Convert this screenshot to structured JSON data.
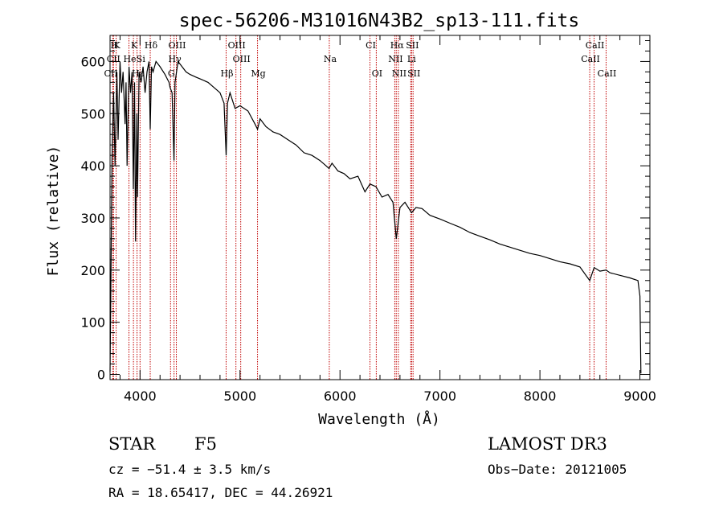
{
  "chart_data": {
    "type": "line",
    "title": "spec-56206-M31016N43B2_sp13-111.fits",
    "xlabel": "Wavelength (Å)",
    "ylabel": "Flux (relative)",
    "xlim": [
      3700,
      9100
    ],
    "ylim": [
      -10,
      650
    ],
    "xticks": [
      4000,
      5000,
      6000,
      7000,
      8000,
      9000
    ],
    "yticks": [
      0,
      100,
      200,
      300,
      400,
      500,
      600
    ],
    "line_color": "#000000",
    "marker_color": "#c00000",
    "spectrum": {
      "x": [
        3700,
        3720,
        3735,
        3750,
        3768,
        3780,
        3800,
        3815,
        3830,
        3850,
        3860,
        3870,
        3890,
        3905,
        3920,
        3933,
        3945,
        3955,
        3968,
        3975,
        3990,
        4010,
        4030,
        4050,
        4070,
        4090,
        4102,
        4115,
        4130,
        4160,
        4200,
        4250,
        4290,
        4300,
        4320,
        4340,
        4350,
        4380,
        4420,
        4460,
        4500,
        4560,
        4620,
        4680,
        4740,
        4800,
        4840,
        4861,
        4875,
        4900,
        4950,
        5000,
        5080,
        5150,
        5175,
        5200,
        5260,
        5330,
        5400,
        5480,
        5560,
        5640,
        5720,
        5800,
        5860,
        5890,
        5920,
        5980,
        6040,
        6100,
        6180,
        6250,
        6300,
        6360,
        6420,
        6480,
        6530,
        6563,
        6600,
        6650,
        6716,
        6760,
        6820,
        6900,
        7000,
        7100,
        7200,
        7300,
        7400,
        7500,
        7600,
        7700,
        7800,
        7900,
        8000,
        8100,
        8200,
        8300,
        8400,
        8498,
        8542,
        8600,
        8662,
        8700,
        8800,
        8900,
        8980,
        9000,
        9010
      ],
      "y": [
        5,
        420,
        540,
        400,
        580,
        450,
        600,
        540,
        580,
        480,
        560,
        400,
        590,
        540,
        580,
        355,
        560,
        255,
        500,
        340,
        580,
        560,
        590,
        540,
        580,
        600,
        470,
        590,
        580,
        600,
        590,
        575,
        560,
        550,
        540,
        410,
        560,
        600,
        590,
        580,
        575,
        570,
        565,
        560,
        550,
        540,
        520,
        420,
        520,
        540,
        510,
        515,
        505,
        480,
        470,
        490,
        475,
        465,
        460,
        450,
        440,
        425,
        420,
        410,
        400,
        395,
        405,
        390,
        385,
        375,
        380,
        350,
        365,
        360,
        340,
        345,
        330,
        260,
        320,
        330,
        310,
        320,
        318,
        305,
        298,
        290,
        282,
        272,
        265,
        258,
        250,
        244,
        238,
        232,
        228,
        222,
        216,
        212,
        206,
        180,
        205,
        198,
        200,
        195,
        190,
        185,
        180,
        150,
        2
      ]
    },
    "spectral_lines": [
      {
        "label": "H",
        "wavelength": 3735,
        "row": 1
      },
      {
        "label": "K",
        "wavelength": 3761,
        "row": 1
      },
      {
        "label": "K",
        "wavelength": 3934,
        "row": 1
      },
      {
        "label": "Hδ",
        "wavelength": 4102,
        "row": 1
      },
      {
        "label": "OIII",
        "wavelength": 4363,
        "row": 1
      },
      {
        "label": "OIII",
        "wavelength": 4959,
        "row": 1
      },
      {
        "label": "CI",
        "wavelength": 6300,
        "row": 1
      },
      {
        "label": "Hα",
        "wavelength": 6563,
        "row": 1
      },
      {
        "label": "SII",
        "wavelength": 6716,
        "row": 1
      },
      {
        "label": "CaII",
        "wavelength": 8542,
        "row": 1
      },
      {
        "label": "CII",
        "wavelength": 3727,
        "row": 2
      },
      {
        "label": "He",
        "wavelength": 3889,
        "row": 2
      },
      {
        "label": "Si",
        "wavelength": 4000,
        "row": 2
      },
      {
        "label": "Hγ",
        "wavelength": 4340,
        "row": 2
      },
      {
        "label": "OIII",
        "wavelength": 5007,
        "row": 2
      },
      {
        "label": "Na",
        "wavelength": 5893,
        "row": 2
      },
      {
        "label": "NII",
        "wavelength": 6548,
        "row": 2
      },
      {
        "label": "Li",
        "wavelength": 6708,
        "row": 2
      },
      {
        "label": "CaII",
        "wavelength": 8498,
        "row": 2
      },
      {
        "label": "CII",
        "wavelength": 3700,
        "row": 3
      },
      {
        "label": "Hε",
        "wavelength": 3970,
        "row": 3
      },
      {
        "label": "G",
        "wavelength": 4305,
        "row": 3
      },
      {
        "label": "Hβ",
        "wavelength": 4861,
        "row": 3
      },
      {
        "label": "Mg",
        "wavelength": 5175,
        "row": 3
      },
      {
        "label": "OI",
        "wavelength": 6363,
        "row": 3
      },
      {
        "label": "NII",
        "wavelength": 6584,
        "row": 3
      },
      {
        "label": "SII",
        "wavelength": 6731,
        "row": 3
      },
      {
        "label": "CaII",
        "wavelength": 8662,
        "row": 3
      }
    ]
  },
  "info": {
    "class": "STAR",
    "subclass": "F5",
    "survey": "LAMOST DR3",
    "cz": "cz = −51.4 ± 3.5 km/s",
    "obs_date": "Obs−Date: 20121005",
    "coords": "RA =  18.65417, DEC =  44.26921"
  }
}
